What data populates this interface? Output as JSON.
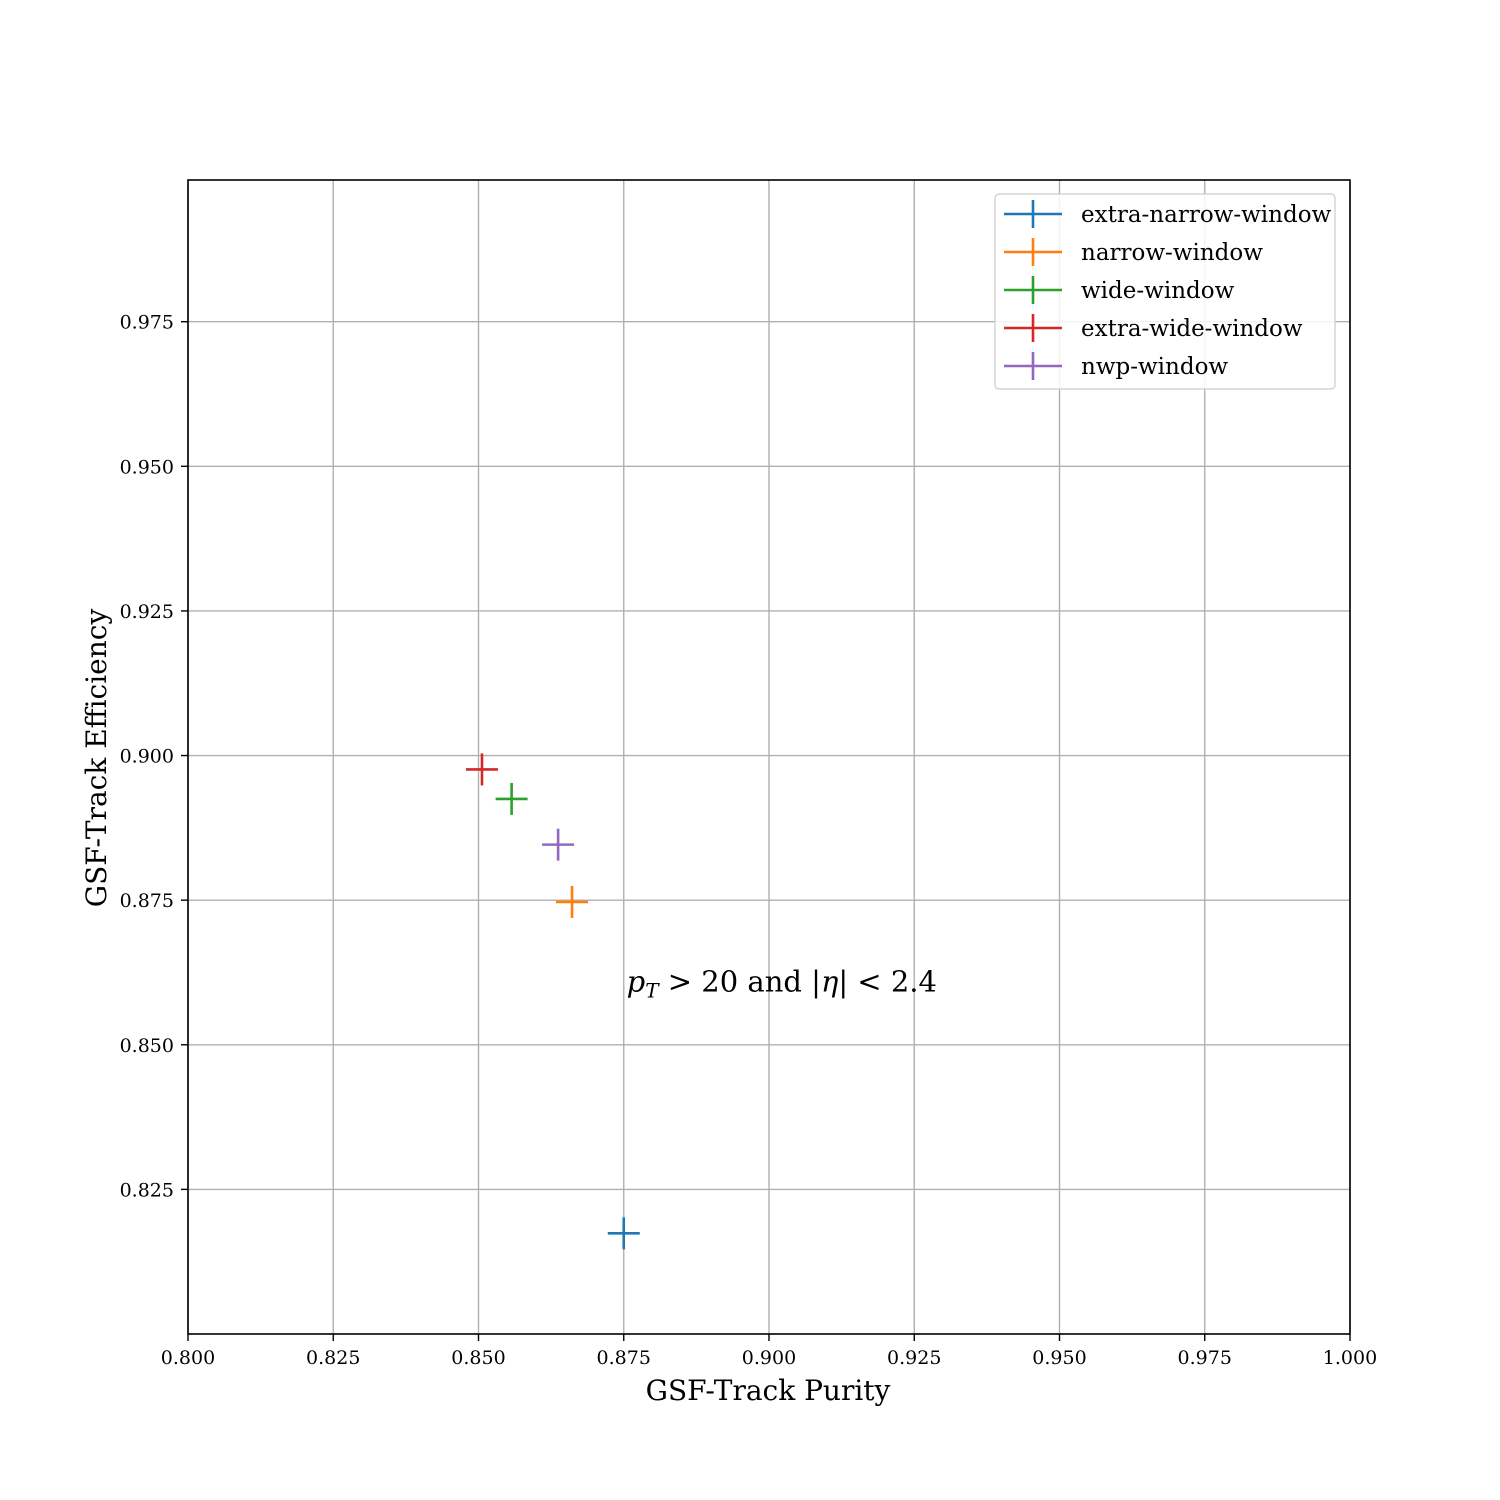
{
  "chart_data": {
    "type": "scatter",
    "title": "",
    "xlabel": "GSF-Track Purity",
    "ylabel": "GSF-Track Efficiency",
    "xlim": [
      0.8,
      1.0
    ],
    "ylim": [
      0.8,
      0.9995
    ],
    "xticks": [
      "0.800",
      "0.825",
      "0.850",
      "0.875",
      "0.900",
      "0.925",
      "0.950",
      "0.975",
      "1.000"
    ],
    "yticks": [
      "0.825",
      "0.850",
      "0.875",
      "0.900",
      "0.925",
      "0.950",
      "0.975"
    ],
    "grid": true,
    "legend_position": "top-right",
    "series": [
      {
        "name": "extra-narrow-window",
        "color": "#1f77b4",
        "x": [
          0.875
        ],
        "y": [
          0.8174
        ]
      },
      {
        "name": "narrow-window",
        "color": "#ff7f0e",
        "x": [
          0.8661
        ],
        "y": [
          0.8747
        ]
      },
      {
        "name": "wide-window",
        "color": "#2ca02c",
        "x": [
          0.8557
        ],
        "y": [
          0.8925
        ]
      },
      {
        "name": "extra-wide-window",
        "color": "#d62728",
        "x": [
          0.8506
        ],
        "y": [
          0.8976
        ]
      },
      {
        "name": "nwp-window",
        "color": "#9467bd",
        "x": [
          0.8637
        ],
        "y": [
          0.8846
        ]
      }
    ],
    "annotation": {
      "p": "p",
      "sub": "T",
      "gt": " > 20 and |",
      "eta": "η",
      "rest": "| < 2.4",
      "x": 0.8755,
      "y": 0.8592
    }
  }
}
